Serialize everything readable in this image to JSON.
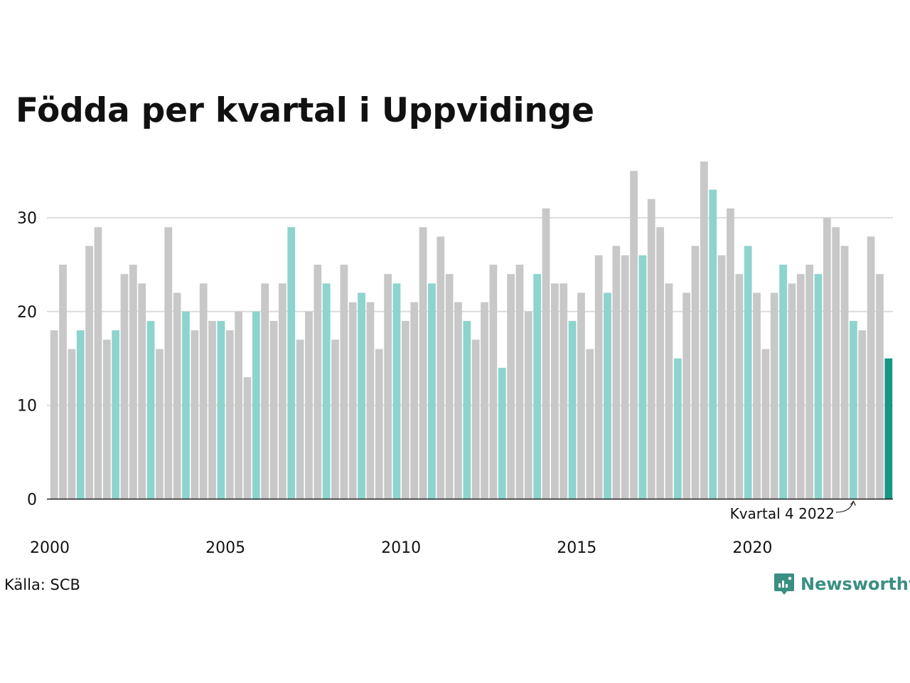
{
  "title": "Födda per kvartal i Uppvidinge",
  "source": "Källa: SCB",
  "brand": {
    "name": "Newsworthy",
    "icon": "newsworthy-logo-icon"
  },
  "colors": {
    "other_quarters": "#c8c8c8",
    "q4_quarters": "#8dd4cd",
    "latest": "#159686",
    "grid": "#dddddd",
    "baseline": "#222222",
    "brand": "#3a8f82"
  },
  "chart_data": {
    "type": "bar",
    "title": "Födda per kvartal i Uppvidinge",
    "xlabel": "",
    "ylabel": "",
    "ylim": [
      0,
      36
    ],
    "yticks": [
      0,
      10,
      20,
      30
    ],
    "xticks": [
      "2000",
      "2005",
      "2010",
      "2015",
      "2020"
    ],
    "grid": true,
    "start": "2000 Q1",
    "annotation": {
      "text": "Kvartal 4 2022",
      "target": "2022 Q4"
    },
    "values": [
      18,
      25,
      16,
      18,
      27,
      29,
      17,
      18,
      24,
      25,
      23,
      19,
      16,
      29,
      22,
      20,
      18,
      23,
      19,
      19,
      18,
      20,
      13,
      20,
      23,
      19,
      23,
      29,
      17,
      20,
      25,
      23,
      17,
      25,
      21,
      22,
      21,
      16,
      24,
      23,
      19,
      21,
      29,
      23,
      28,
      24,
      21,
      19,
      17,
      21,
      25,
      14,
      24,
      25,
      20,
      24,
      31,
      23,
      23,
      19,
      22,
      16,
      26,
      22,
      27,
      26,
      35,
      26,
      32,
      29,
      23,
      15,
      22,
      27,
      36,
      33,
      26,
      31,
      24,
      27,
      22,
      16,
      22,
      25,
      23,
      24,
      25,
      24,
      30,
      29,
      27,
      19,
      18,
      28,
      24,
      15
    ]
  }
}
